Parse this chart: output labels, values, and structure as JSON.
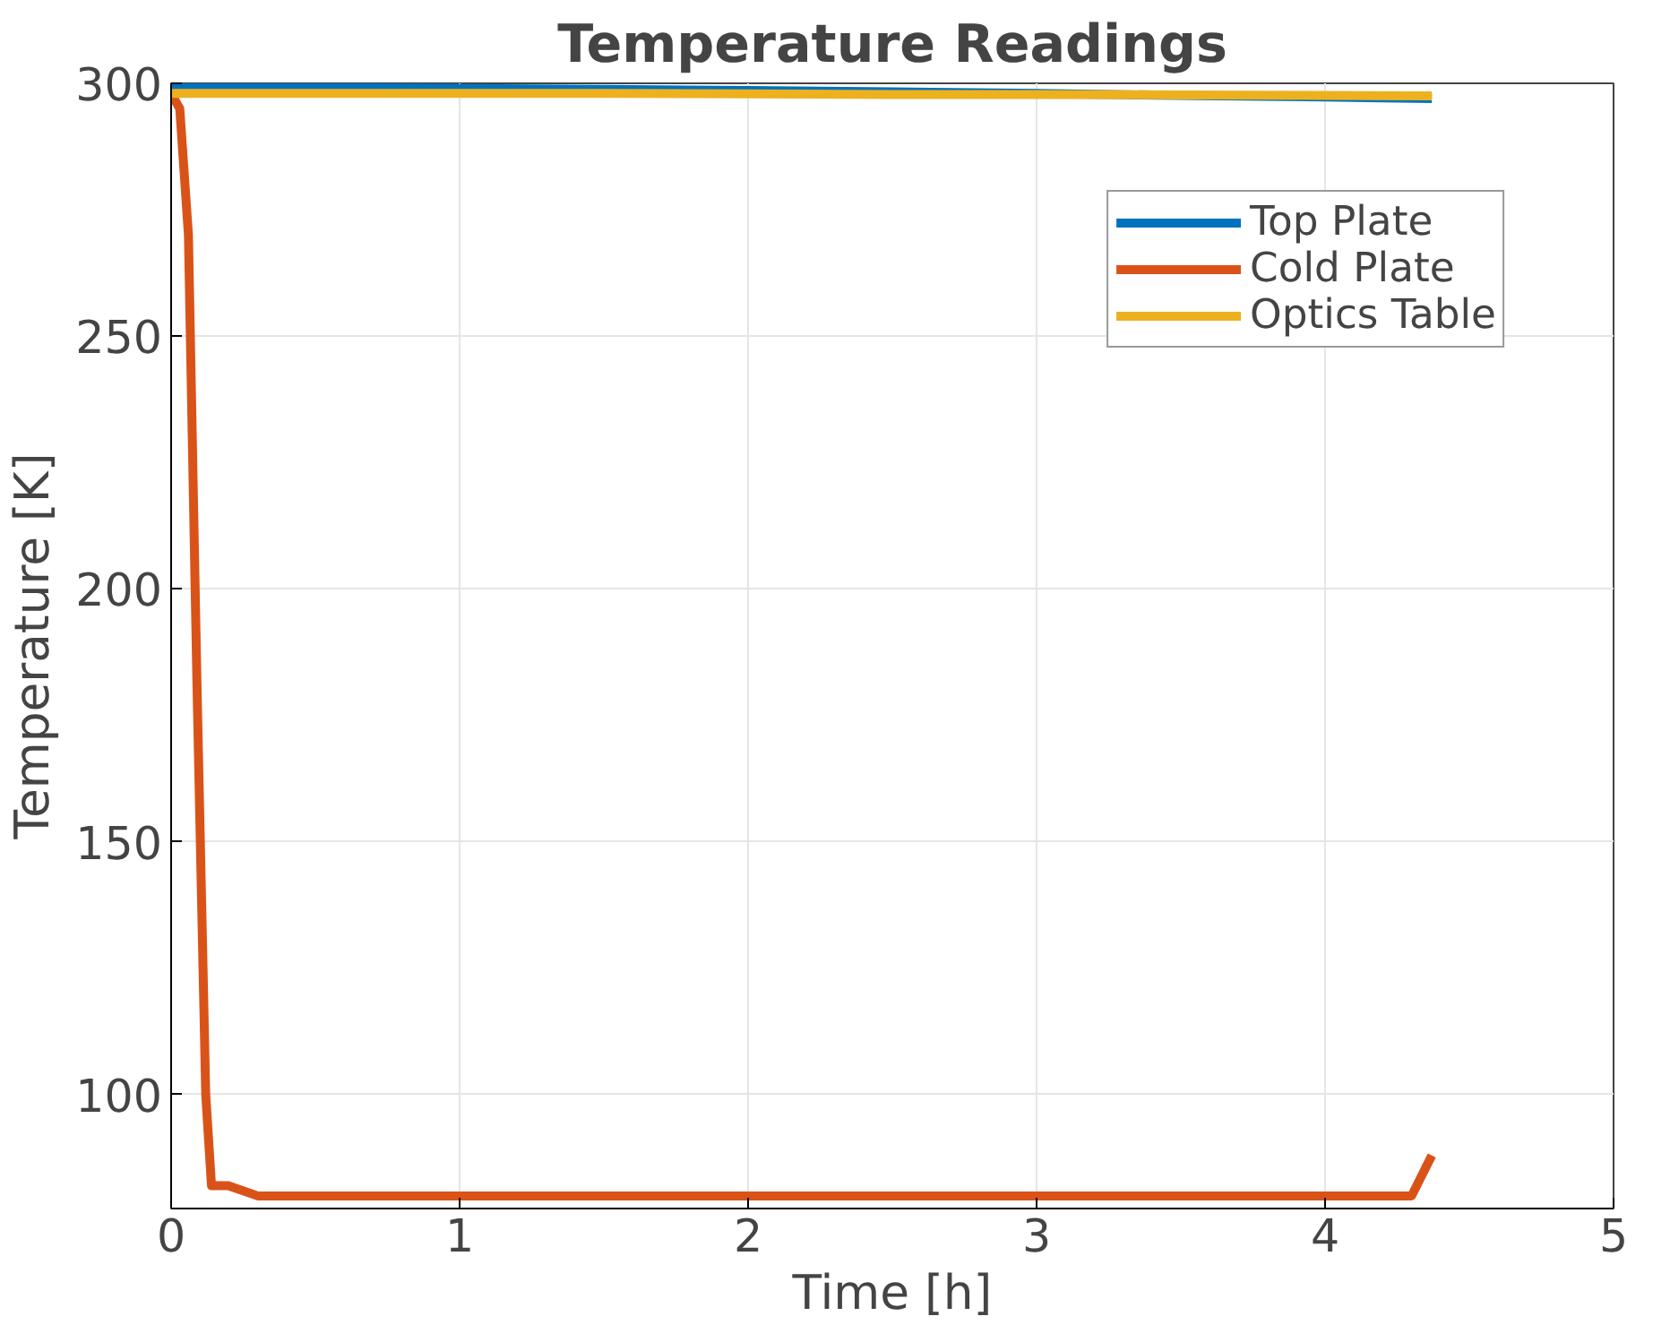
{
  "chart_data": {
    "type": "line",
    "title": "Temperature Readings",
    "xlabel": "Time [h]",
    "ylabel": "Temperature [K]",
    "xlim": [
      0,
      5
    ],
    "ylim": [
      77.5,
      300
    ],
    "xticks": [
      0,
      1,
      2,
      3,
      4,
      5
    ],
    "yticks": [
      100,
      150,
      200,
      250,
      300
    ],
    "grid": true,
    "legend": "top right",
    "series": [
      {
        "name": "Top Plate",
        "color": "#0072bd",
        "x": [
          0,
          0.5,
          1,
          1.5,
          2,
          2.5,
          3,
          3.5,
          4,
          4.37
        ],
        "values": [
          299.3,
          299.2,
          299,
          298.8,
          298.6,
          298.3,
          298,
          297.6,
          297.3,
          297
        ]
      },
      {
        "name": "Cold Plate",
        "color": "#d95319",
        "x": [
          0,
          0.03,
          0.06,
          0.09,
          0.12,
          0.14,
          0.2,
          0.3,
          1,
          2,
          3,
          4,
          4.3,
          4.37
        ],
        "values": [
          298,
          295,
          270,
          180,
          100,
          82,
          82,
          80,
          80,
          80,
          80,
          80,
          80,
          88
        ]
      },
      {
        "name": "Optics Table",
        "color": "#edb120",
        "x": [
          0,
          0.5,
          1,
          1.5,
          2,
          2.5,
          3,
          3.5,
          4,
          4.37
        ],
        "values": [
          298,
          298,
          298,
          298,
          297.9,
          297.8,
          297.8,
          297.7,
          297.6,
          297.5
        ]
      }
    ]
  }
}
